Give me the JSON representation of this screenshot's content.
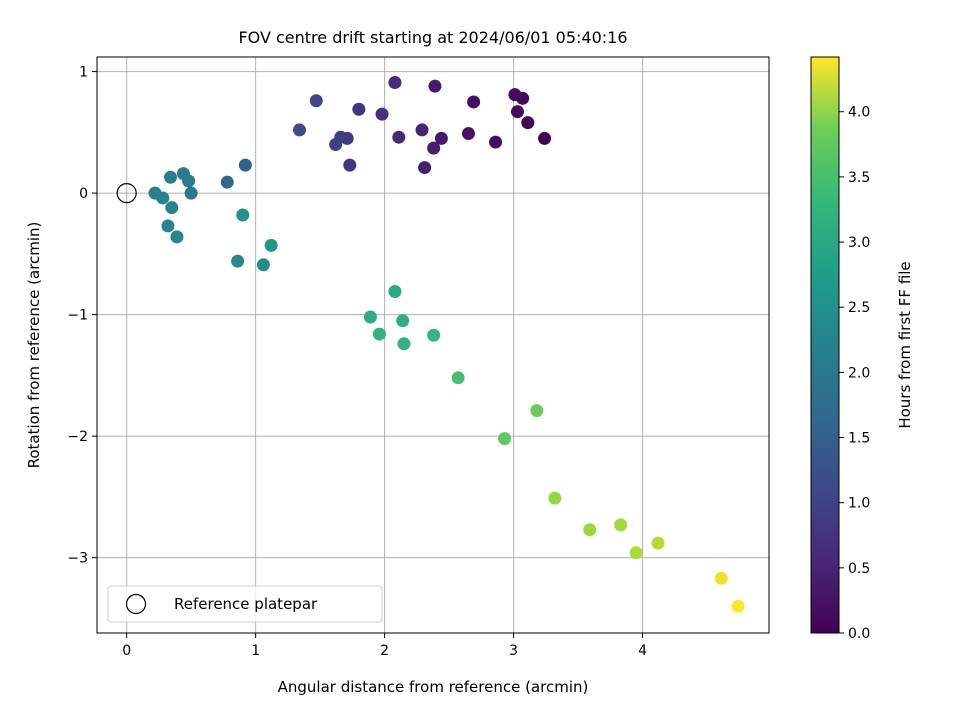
{
  "chart_data": {
    "type": "scatter",
    "title": "FOV centre drift starting at 2024/06/01 05:40:16",
    "xlabel": "Angular distance from reference (arcmin)",
    "ylabel": "Rotation from reference (arcmin)",
    "xlim": [
      -0.23,
      4.98
    ],
    "ylim": [
      -3.62,
      1.12
    ],
    "xticks": [
      0,
      1,
      2,
      3,
      4
    ],
    "yticks": [
      -3,
      -2,
      -1,
      0,
      1
    ],
    "xtick_labels": [
      "0",
      "1",
      "2",
      "3",
      "4"
    ],
    "ytick_labels": [
      "−3",
      "−2",
      "−1",
      "0",
      "1"
    ],
    "grid": true,
    "legend": {
      "placement": "lower-left",
      "label": "Reference platepar"
    },
    "reference_point": {
      "x": 0,
      "y": 0
    },
    "colorbar": {
      "label": "Hours from first FF file",
      "min": 0.0,
      "max": 4.42,
      "ticks": [
        0.0,
        0.5,
        1.0,
        1.5,
        2.0,
        2.5,
        3.0,
        3.5,
        4.0
      ],
      "tick_labels": [
        "0.0",
        "0.5",
        "1.0",
        "1.5",
        "2.0",
        "2.5",
        "3.0",
        "3.5",
        "4.0"
      ],
      "colormap": "viridis"
    },
    "points": [
      {
        "x": 3.24,
        "y": 0.45,
        "h": 0.02
      },
      {
        "x": 3.11,
        "y": 0.58,
        "h": 0.05
      },
      {
        "x": 3.07,
        "y": 0.78,
        "h": 0.08
      },
      {
        "x": 3.03,
        "y": 0.67,
        "h": 0.1
      },
      {
        "x": 3.01,
        "y": 0.81,
        "h": 0.12
      },
      {
        "x": 2.86,
        "y": 0.42,
        "h": 0.15
      },
      {
        "x": 2.69,
        "y": 0.75,
        "h": 0.18
      },
      {
        "x": 2.65,
        "y": 0.49,
        "h": 0.21
      },
      {
        "x": 2.44,
        "y": 0.45,
        "h": 0.3
      },
      {
        "x": 2.39,
        "y": 0.88,
        "h": 0.33
      },
      {
        "x": 2.38,
        "y": 0.37,
        "h": 0.36
      },
      {
        "x": 2.31,
        "y": 0.21,
        "h": 0.4
      },
      {
        "x": 2.29,
        "y": 0.52,
        "h": 0.45
      },
      {
        "x": 2.11,
        "y": 0.46,
        "h": 0.5
      },
      {
        "x": 2.08,
        "y": 0.91,
        "h": 0.52
      },
      {
        "x": 1.98,
        "y": 0.65,
        "h": 0.6
      },
      {
        "x": 1.8,
        "y": 0.69,
        "h": 0.68
      },
      {
        "x": 1.73,
        "y": 0.23,
        "h": 0.72
      },
      {
        "x": 1.71,
        "y": 0.45,
        "h": 0.75
      },
      {
        "x": 1.66,
        "y": 0.46,
        "h": 0.8
      },
      {
        "x": 1.62,
        "y": 0.4,
        "h": 0.85
      },
      {
        "x": 1.47,
        "y": 0.76,
        "h": 0.95
      },
      {
        "x": 1.34,
        "y": 0.52,
        "h": 1.0
      },
      {
        "x": 0.92,
        "y": 0.23,
        "h": 1.35
      },
      {
        "x": 0.78,
        "y": 0.09,
        "h": 1.45
      },
      {
        "x": 0.5,
        "y": 0.0,
        "h": 1.75
      },
      {
        "x": 0.48,
        "y": 0.1,
        "h": 1.8
      },
      {
        "x": 0.44,
        "y": 0.16,
        "h": 1.83
      },
      {
        "x": 0.34,
        "y": 0.13,
        "h": 1.88
      },
      {
        "x": 0.22,
        "y": 0.0,
        "h": 1.92
      },
      {
        "x": 0.28,
        "y": -0.04,
        "h": 1.95
      },
      {
        "x": 0.35,
        "y": -0.12,
        "h": 1.98
      },
      {
        "x": 0.32,
        "y": -0.27,
        "h": 2.0
      },
      {
        "x": 0.39,
        "y": -0.36,
        "h": 2.03
      },
      {
        "x": 0.9,
        "y": -0.18,
        "h": 2.25
      },
      {
        "x": 0.86,
        "y": -0.56,
        "h": 2.1
      },
      {
        "x": 1.06,
        "y": -0.59,
        "h": 2.15
      },
      {
        "x": 1.12,
        "y": -0.43,
        "h": 2.3
      },
      {
        "x": 2.08,
        "y": -0.81,
        "h": 2.7
      },
      {
        "x": 1.89,
        "y": -1.02,
        "h": 2.75
      },
      {
        "x": 2.14,
        "y": -1.05,
        "h": 2.8
      },
      {
        "x": 1.96,
        "y": -1.16,
        "h": 2.83
      },
      {
        "x": 2.15,
        "y": -1.24,
        "h": 2.87
      },
      {
        "x": 2.38,
        "y": -1.17,
        "h": 2.95
      },
      {
        "x": 2.57,
        "y": -1.52,
        "h": 3.1
      },
      {
        "x": 3.18,
        "y": -1.79,
        "h": 3.4
      },
      {
        "x": 2.93,
        "y": -2.02,
        "h": 3.3
      },
      {
        "x": 3.32,
        "y": -2.51,
        "h": 3.7
      },
      {
        "x": 3.59,
        "y": -2.77,
        "h": 3.75
      },
      {
        "x": 3.83,
        "y": -2.73,
        "h": 3.8
      },
      {
        "x": 3.95,
        "y": -2.96,
        "h": 3.85
      },
      {
        "x": 4.12,
        "y": -2.88,
        "h": 3.9
      },
      {
        "x": 4.61,
        "y": -3.17,
        "h": 4.3
      },
      {
        "x": 4.74,
        "y": -3.4,
        "h": 4.4
      }
    ]
  }
}
